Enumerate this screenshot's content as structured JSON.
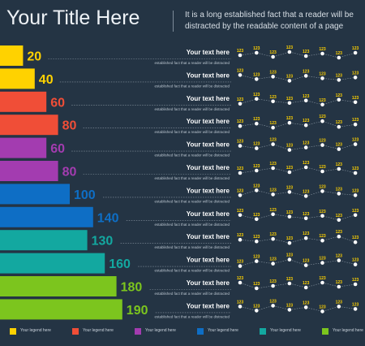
{
  "header": {
    "title": "Your Title Here",
    "subtitle": "It is a long established fact that a reader will be distracted by the readable content of a page"
  },
  "chart_data": {
    "type": "bar",
    "orientation": "horizontal",
    "values": [
      20,
      40,
      60,
      80,
      60,
      80,
      100,
      140,
      130,
      160,
      180,
      190
    ],
    "bar_colors": [
      "#ffd200",
      "#ffd200",
      "#f04e37",
      "#f04e37",
      "#a33cb0",
      "#a33cb0",
      "#0e6ec5",
      "#0e6ec5",
      "#13a8a0",
      "#13a8a0",
      "#7cc51e",
      "#7cc51e"
    ],
    "row_title": "Your text here",
    "row_caption": "established fact that a reader will be distracted",
    "sparkline": {
      "label": "123",
      "points_per_row": 8
    },
    "legend": [
      {
        "label": "Your legend here",
        "color": "#ffd200"
      },
      {
        "label": "Your legend here",
        "color": "#f04e37"
      },
      {
        "label": "Your legend here",
        "color": "#a33cb0"
      },
      {
        "label": "Your legend here",
        "color": "#0e6ec5"
      },
      {
        "label": "Your legend here",
        "color": "#13a8a0"
      },
      {
        "label": "Your legend here",
        "color": "#7cc51e"
      }
    ]
  }
}
